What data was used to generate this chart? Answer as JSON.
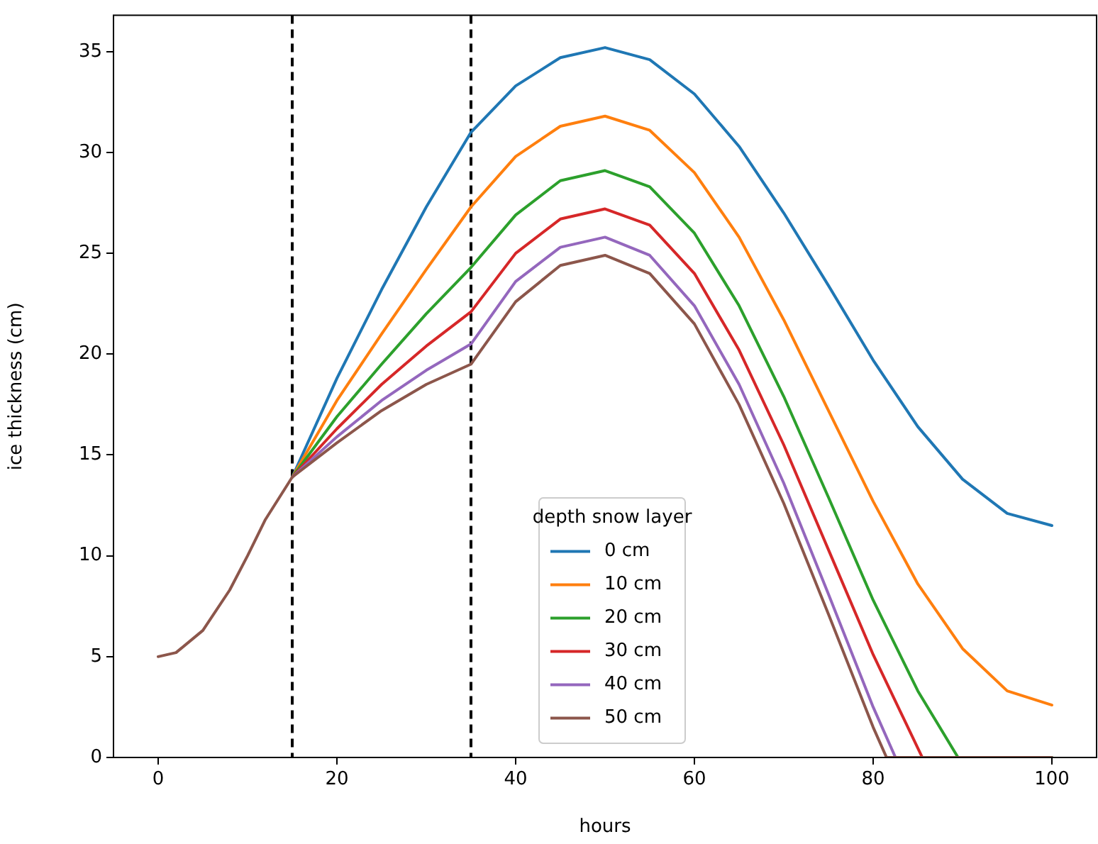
{
  "chart_data": {
    "type": "line",
    "xlabel": "hours",
    "ylabel": "ice thickness (cm)",
    "legend_title": "depth snow layer",
    "legend": "bottom",
    "grid": false,
    "line_style": "solid",
    "marker": "none",
    "xlim": [
      -5,
      105
    ],
    "xticks": [
      0,
      20,
      40,
      60,
      80,
      100
    ],
    "ylim": [
      0,
      36.8
    ],
    "yticks": [
      0,
      5,
      10,
      15,
      20,
      25,
      30,
      35
    ],
    "ref_lines": [
      {
        "axis": "x",
        "value": 15,
        "color": "#000000",
        "line_style": "dashed"
      },
      {
        "axis": "x",
        "value": 35,
        "color": "#000000",
        "line_style": "dashed"
      }
    ],
    "series": [
      {
        "name": "0 cm",
        "color": "#1f77b4",
        "x": [
          15,
          20,
          25,
          30,
          35,
          40,
          45,
          50,
          55,
          60,
          65,
          70,
          75,
          80,
          85,
          90,
          95,
          100
        ],
        "values": [
          13.9,
          18.8,
          23.2,
          27.3,
          31,
          33.3,
          34.7,
          35.2,
          34.6,
          32.9,
          30.3,
          27,
          23.4,
          19.7,
          16.4,
          13.8,
          12.1,
          11.5
        ]
      },
      {
        "name": "10 cm",
        "color": "#ff7f0e",
        "x": [
          15,
          20,
          25,
          30,
          35,
          40,
          45,
          50,
          55,
          60,
          65,
          70,
          75,
          80,
          85,
          90,
          95,
          100
        ],
        "values": [
          13.9,
          17.7,
          21,
          24.2,
          27.3,
          29.8,
          31.3,
          31.8,
          31.1,
          29,
          25.8,
          21.7,
          17.2,
          12.7,
          8.6,
          5.4,
          3.3,
          2.6
        ]
      },
      {
        "name": "20 cm",
        "color": "#2ca02c",
        "x": [
          15,
          20,
          25,
          30,
          35,
          40,
          45,
          50,
          55,
          60,
          65,
          70,
          75,
          80,
          85,
          89.5,
          95,
          100
        ],
        "values": [
          13.9,
          16.9,
          19.5,
          22,
          24.3,
          26.9,
          28.6,
          29.1,
          28.3,
          26,
          22.4,
          17.9,
          12.9,
          7.8,
          3.3,
          0,
          0,
          0
        ]
      },
      {
        "name": "30 cm",
        "color": "#d62728",
        "x": [
          15,
          20,
          25,
          30,
          35,
          40,
          45,
          50,
          55,
          60,
          65,
          70,
          75,
          80,
          85.5
        ],
        "values": [
          13.9,
          16.3,
          18.5,
          20.4,
          22.1,
          25,
          26.7,
          27.2,
          26.4,
          24,
          20.2,
          15.5,
          10.3,
          5.1,
          0
        ]
      },
      {
        "name": "40 cm",
        "color": "#9467bd",
        "x": [
          15,
          20,
          25,
          30,
          35,
          40,
          45,
          50,
          55,
          60,
          65,
          70,
          75,
          80,
          82.5
        ],
        "values": [
          13.9,
          15.9,
          17.7,
          19.2,
          20.5,
          23.6,
          25.3,
          25.8,
          24.9,
          22.4,
          18.5,
          13.6,
          8.1,
          2.5,
          0
        ]
      },
      {
        "name": "50 cm",
        "color": "#8c564b",
        "x": [
          0,
          2,
          5,
          8,
          10,
          12,
          15,
          20,
          25,
          30,
          35,
          40,
          45,
          50,
          55,
          60,
          65,
          70,
          75,
          80,
          81.5,
          90,
          95,
          100
        ],
        "values": [
          5,
          5.2,
          6.3,
          8.3,
          10,
          11.8,
          13.9,
          15.6,
          17.2,
          18.5,
          19.5,
          22.6,
          24.4,
          24.9,
          24,
          21.5,
          17.5,
          12.6,
          7.1,
          1.5,
          0,
          0,
          0,
          0
        ]
      }
    ]
  }
}
